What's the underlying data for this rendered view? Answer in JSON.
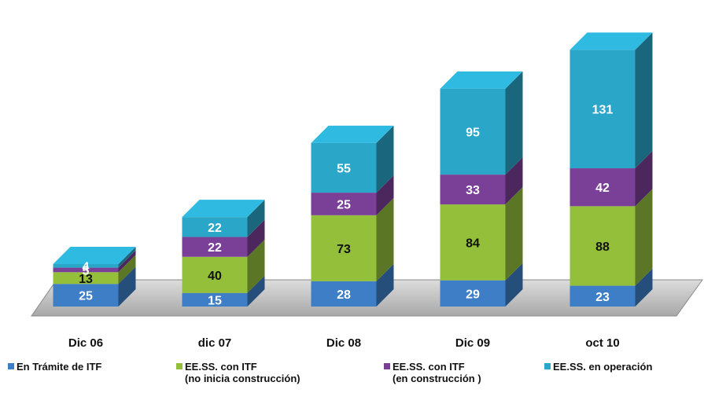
{
  "chart_data": {
    "type": "bar",
    "stacked": true,
    "three_d": true,
    "categories": [
      "Dic 06",
      "dic 07",
      "Dic 08",
      "Dic 09",
      "oct 10"
    ],
    "series": [
      {
        "name": "En Trámite de ITF",
        "color": "#3e7ec7",
        "values": [
          25,
          15,
          28,
          29,
          23
        ]
      },
      {
        "name": "EE.SS. con  ITF\n(no inicia construcción)",
        "color": "#93bf3a",
        "values": [
          13,
          40,
          73,
          84,
          88
        ]
      },
      {
        "name": "EE.SS.  con ITF\n(en construcción )",
        "color": "#7a3f96",
        "values": [
          5,
          22,
          25,
          33,
          42
        ]
      },
      {
        "name": "EE.SS.  en operación",
        "color": "#2aa6c9",
        "values": [
          4,
          22,
          55,
          95,
          131
        ]
      }
    ],
    "data_labels": true,
    "grid": false,
    "legend": "bottom"
  }
}
